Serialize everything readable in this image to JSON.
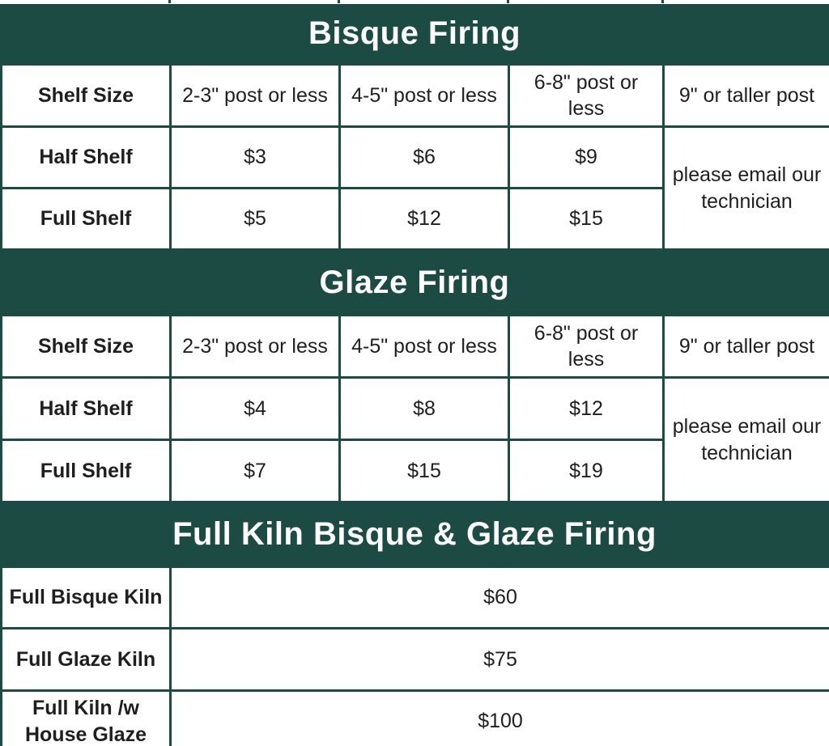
{
  "colors": {
    "band_green": "#1c4b44",
    "border_green": "#1c4b44",
    "label_beige": "#e0dfd6",
    "cell_white": "#ffffff",
    "title_text": "#fcfdfc",
    "body_text": "#1f1f1f"
  },
  "sections": [
    {
      "title": "Bisque Firing",
      "header": [
        "Shelf Size",
        "2-3\" post or less",
        "4-5\" post or less",
        "6-8\" post or less",
        "9\" or taller post"
      ],
      "rows": [
        {
          "label": "Half Shelf",
          "prices": [
            "$3",
            "$6",
            "$9"
          ]
        },
        {
          "label": "Full Shelf",
          "prices": [
            "$5",
            "$12",
            "$15"
          ]
        }
      ],
      "tall_post_note": "please email our technician"
    },
    {
      "title": "Glaze Firing",
      "header": [
        "Shelf Size",
        "2-3\" post or less",
        "4-5\" post or less",
        "6-8\" post or less",
        "9\" or taller post"
      ],
      "rows": [
        {
          "label": "Half Shelf",
          "prices": [
            "$4",
            "$8",
            "$12"
          ]
        },
        {
          "label": "Full Shelf",
          "prices": [
            "$7",
            "$15",
            "$19"
          ]
        }
      ],
      "tall_post_note": "please email our technician"
    },
    {
      "title": "Full Kiln Bisque & Glaze Firing",
      "rows": [
        {
          "label": "Full Bisque Kiln",
          "price": "$60"
        },
        {
          "label": "Full Glaze Kiln",
          "price": "$75"
        },
        {
          "label": "Full Kiln /w House Glaze",
          "price": "$100"
        }
      ]
    }
  ]
}
